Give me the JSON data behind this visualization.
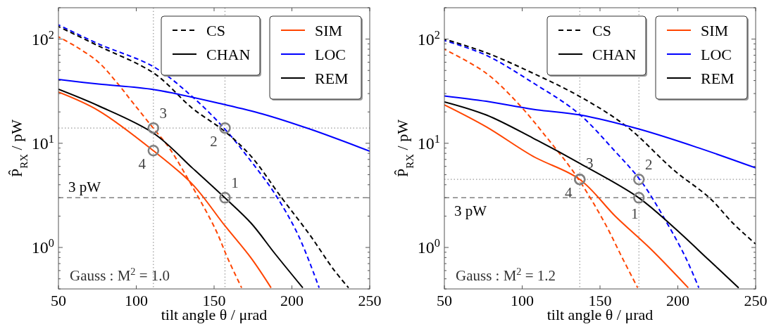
{
  "chart_data": [
    {
      "type": "line",
      "xlabel": "tilt angle θ / μrad",
      "ylabel": "P̂$_{RX}$ / pW",
      "xlim": [
        50,
        250
      ],
      "xticks": [
        50,
        100,
        150,
        200,
        250
      ],
      "ylim": [
        0.4,
        200
      ],
      "log": "y",
      "legend": "top right",
      "yticks": [
        {
          "value": 0.4,
          "label": null
        },
        {
          "value": 0.5,
          "label": null
        },
        {
          "value": 0.6,
          "label": null
        },
        {
          "value": 0.7,
          "label": null
        },
        {
          "value": 0.8,
          "label": null
        },
        {
          "value": 0.9,
          "label": null
        },
        {
          "value": 1,
          "label": "10$^{0}$"
        },
        {
          "value": 2,
          "label": null
        },
        {
          "value": 3,
          "label": null
        },
        {
          "value": 4,
          "label": null
        },
        {
          "value": 5,
          "label": null
        },
        {
          "value": 6,
          "label": null
        },
        {
          "value": 7,
          "label": null
        },
        {
          "value": 8,
          "label": null
        },
        {
          "value": 9,
          "label": null
        },
        {
          "value": 10,
          "label": "10$^{1}$"
        },
        {
          "value": 20,
          "label": null
        },
        {
          "value": 30,
          "label": null
        },
        {
          "value": 40,
          "label": null
        },
        {
          "value": 50,
          "label": null
        },
        {
          "value": 60,
          "label": null
        },
        {
          "value": 70,
          "label": null
        },
        {
          "value": 80,
          "label": null
        },
        {
          "value": 90,
          "label": null
        },
        {
          "value": 100,
          "label": "10$^{2}$"
        },
        {
          "value": 200,
          "label": null
        }
      ],
      "series": [
        {
          "color": "#ff4500",
          "line_style": "dashed",
          "x": [
            50,
            60.6,
            75.7,
            87.7,
            98.3,
            111.4,
            121,
            136,
            151.1,
            158.7,
            167.7
          ],
          "values": [
            105,
            86,
            60,
            38,
            24,
            13.7,
            9.1,
            3.85,
            1.47,
            0.79,
            0.41
          ]
        },
        {
          "color": "#0000ff",
          "line_style": "dashed",
          "x": [
            50,
            75.7,
            111.4,
            136,
            156.9,
            173.8,
            188.9,
            204,
            217.5
          ],
          "values": [
            137,
            90,
            54,
            28,
            13.7,
            6.7,
            3.3,
            1.32,
            0.41
          ]
        },
        {
          "color": "#000000",
          "line_style": "dashed",
          "x": [
            50,
            75.7,
            111.4,
            136,
            156.9,
            173.8,
            193.4,
            211.5,
            226.6,
            236.4
          ],
          "values": [
            132,
            86,
            47,
            21.7,
            13,
            7.5,
            3.0,
            1.32,
            0.62,
            0.41
          ]
        },
        {
          "name": "SIM",
          "color": "#ff4500",
          "line_style": "solid",
          "x": [
            50,
            75.7,
            111.4,
            136,
            156.9,
            173.8,
            186.6
          ],
          "values": [
            31,
            20.6,
            8.4,
            4.06,
            1.62,
            0.79,
            0.41
          ]
        },
        {
          "name": "LOC",
          "color": "#0000ff",
          "line_style": "solid",
          "x": [
            50,
            75.7,
            111.4,
            156.9,
            181.3,
            211.5,
            250
          ],
          "values": [
            41,
            37,
            32.7,
            23.5,
            19.1,
            13.7,
            8.4
          ]
        },
        {
          "name": "REM",
          "color": "#000000",
          "line_style": "solid",
          "x": [
            50,
            75.7,
            111.4,
            136,
            156.9,
            173.8,
            188.9,
            207
          ],
          "values": [
            33,
            22.9,
            12.4,
            5.8,
            3.0,
            1.71,
            0.88,
            0.41
          ]
        }
      ],
      "ref_lines": [
        {
          "axis": "y",
          "value": 3,
          "label": "3 pW",
          "color": "#808080",
          "line_style": "dashed"
        },
        {
          "axis": "y",
          "value": 14,
          "color": "#999999",
          "line_style": "dotted"
        },
        {
          "axis": "x",
          "value": 111,
          "color": "#999999",
          "line_style": "dotted"
        },
        {
          "axis": "x",
          "value": 157,
          "color": "#999999",
          "line_style": "dotted"
        }
      ],
      "annotations": [
        "CS",
        "CHAN",
        "Gauss : M$^{2}$ = 1.0",
        {
          "text": "1",
          "x": 157,
          "y": 3
        },
        {
          "text": "2",
          "x": 157,
          "y": 14
        },
        {
          "text": "3",
          "x": 111,
          "y": 14
        },
        {
          "text": "4",
          "x": 111,
          "y": 8.5
        }
      ]
    },
    {
      "type": "line",
      "xlabel": "tilt angle θ / μrad",
      "ylabel": "P̂$_{RX}$ / pW",
      "xlim": [
        50,
        250
      ],
      "xticks": [
        50,
        100,
        150,
        200,
        250
      ],
      "ylim": [
        0.4,
        200
      ],
      "log": "y",
      "legend": "top right",
      "yticks": [
        {
          "value": 0.4,
          "label": null
        },
        {
          "value": 0.5,
          "label": null
        },
        {
          "value": 0.6,
          "label": null
        },
        {
          "value": 0.7,
          "label": null
        },
        {
          "value": 0.8,
          "label": null
        },
        {
          "value": 0.9,
          "label": null
        },
        {
          "value": 1,
          "label": "10$^{0}$"
        },
        {
          "value": 2,
          "label": null
        },
        {
          "value": 3,
          "label": null
        },
        {
          "value": 4,
          "label": null
        },
        {
          "value": 5,
          "label": null
        },
        {
          "value": 6,
          "label": null
        },
        {
          "value": 7,
          "label": null
        },
        {
          "value": 8,
          "label": null
        },
        {
          "value": 9,
          "label": null
        },
        {
          "value": 10,
          "label": "10$^{1}$"
        },
        {
          "value": 20,
          "label": null
        },
        {
          "value": 30,
          "label": null
        },
        {
          "value": 40,
          "label": null
        },
        {
          "value": 50,
          "label": null
        },
        {
          "value": 60,
          "label": null
        },
        {
          "value": 70,
          "label": null
        },
        {
          "value": 80,
          "label": null
        },
        {
          "value": 90,
          "label": null
        },
        {
          "value": 100,
          "label": "10$^{2}$"
        },
        {
          "value": 200,
          "label": null
        }
      ],
      "series": [
        {
          "color": "#ff4500",
          "line_style": "dashed",
          "x": [
            50,
            76.9,
            97.5,
            116.1,
            134.2,
            152.3,
            164.4,
            174.2
          ],
          "values": [
            80,
            47,
            24,
            11.2,
            5.0,
            1.8,
            0.79,
            0.41
          ]
        },
        {
          "color": "#0000ff",
          "line_style": "dashed",
          "x": [
            50,
            76.9,
            107,
            135.7,
            159.9,
            176.5,
            193.1,
            205.2,
            213.5
          ],
          "values": [
            97,
            70,
            38,
            19.6,
            8.3,
            4.3,
            1.71,
            0.79,
            0.41
          ]
        },
        {
          "color": "#000000",
          "line_style": "dashed",
          "x": [
            50,
            76.9,
            107,
            137.2,
            167.4,
            197.6,
            220.3,
            235.4,
            250
          ],
          "values": [
            100,
            74,
            47,
            28,
            14.4,
            5.5,
            3.0,
            1.71,
            1.08
          ]
        },
        {
          "name": "SIM",
          "color": "#ff4500",
          "line_style": "solid",
          "x": [
            50,
            76.9,
            107,
            137,
            159.9,
            182.5,
            206.7
          ],
          "values": [
            23.4,
            14.4,
            7.5,
            4.5,
            1.99,
            0.97,
            0.41
          ]
        },
        {
          "name": "LOC",
          "color": "#0000ff",
          "line_style": "solid",
          "x": [
            50,
            76.9,
            107,
            137.2,
            174.9,
            212.7,
            250
          ],
          "values": [
            28.5,
            25.3,
            21.2,
            18.7,
            13.7,
            9.1,
            5.8
          ]
        },
        {
          "name": "REM",
          "color": "#000000",
          "line_style": "solid",
          "x": [
            50,
            76.9,
            107,
            137.2,
            174.9,
            197.6,
            220.3,
            239.1
          ],
          "values": [
            25,
            18.7,
            11.2,
            6.4,
            3.0,
            1.55,
            0.75,
            0.41
          ]
        }
      ],
      "ref_lines": [
        {
          "axis": "y",
          "value": 3,
          "label": "3 pW",
          "color": "#808080",
          "line_style": "dashed"
        },
        {
          "axis": "y",
          "value": 4.5,
          "color": "#999999",
          "line_style": "dotted"
        },
        {
          "axis": "x",
          "value": 137,
          "color": "#999999",
          "line_style": "dotted"
        },
        {
          "axis": "x",
          "value": 175,
          "color": "#999999",
          "line_style": "dotted"
        }
      ],
      "annotations": [
        "CS",
        "CHAN",
        "Gauss : M$^{2}$ = 1.2",
        {
          "text": "1",
          "x": 175,
          "y": 3
        },
        {
          "text": "2",
          "x": 175,
          "y": 4.5
        },
        {
          "text": "3",
          "x": 137,
          "y": 4.5
        },
        {
          "text": "4",
          "x": 137,
          "y": 4.5
        }
      ]
    }
  ]
}
